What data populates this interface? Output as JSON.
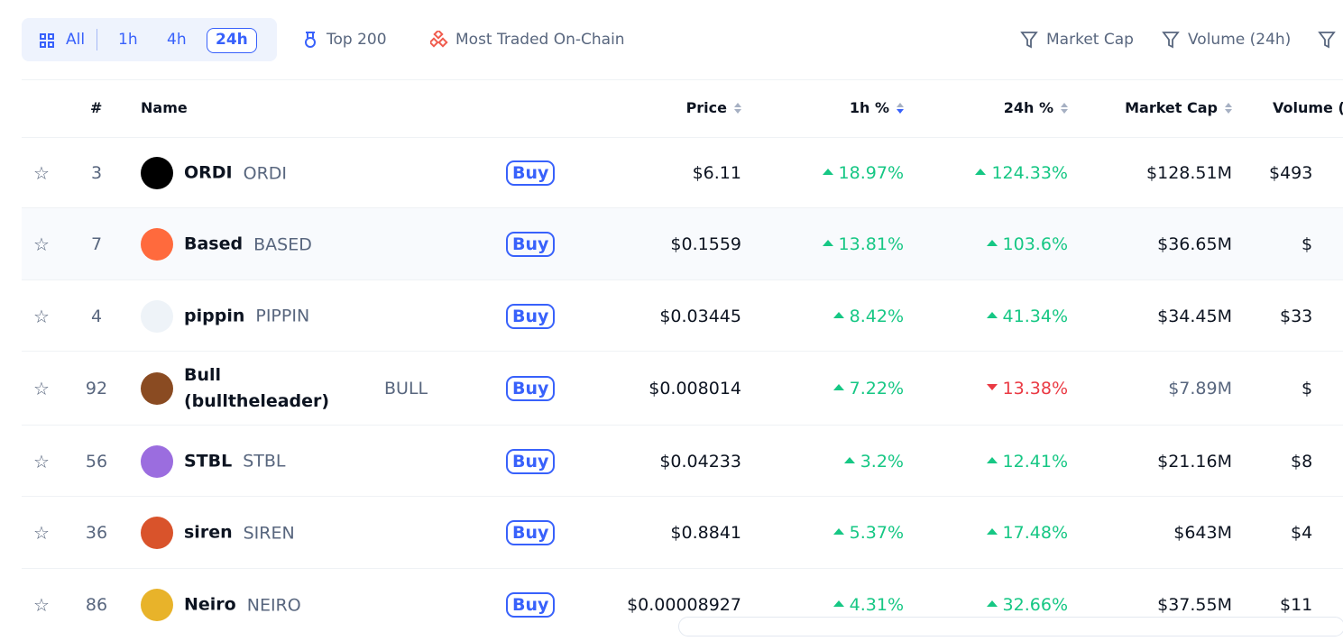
{
  "toolbar": {
    "tabs": [
      "All",
      "1h",
      "4h",
      "24h"
    ],
    "active_tab": 3,
    "filters": [
      "Top 200",
      "Most Traded On-Chain"
    ],
    "right_filters": [
      "Market Cap",
      "Volume (24h)"
    ]
  },
  "table": {
    "headers": [
      "#",
      "Name",
      "Price",
      "1h %",
      "24h %",
      "Market Cap",
      "Volume ("
    ],
    "buy_label": "Buy",
    "rows": [
      {
        "rank": 3,
        "name": "ORDI",
        "symbol": "ORDI",
        "price": "$6.11",
        "change_1h": "18.97%",
        "dir_1h": "up",
        "change_24h": "124.33%",
        "dir_24h": "up",
        "market_cap": "$128.51M",
        "volume": "$493",
        "icon": "#000000"
      },
      {
        "rank": 7,
        "name": "Based",
        "symbol": "BASED",
        "price": "$0.1559",
        "change_1h": "13.81%",
        "dir_1h": "up",
        "change_24h": "103.6%",
        "dir_24h": "up",
        "market_cap": "$36.65M",
        "volume": "$",
        "icon": "#ff6a3d"
      },
      {
        "rank": 4,
        "name": "pippin",
        "symbol": "PIPPIN",
        "price": "$0.03445",
        "change_1h": "8.42%",
        "dir_1h": "up",
        "change_24h": "41.34%",
        "dir_24h": "up",
        "market_cap": "$34.45M",
        "volume": "$33",
        "icon": "#eef3f8"
      },
      {
        "rank": 92,
        "name": "Bull (bulltheleader)",
        "symbol": "BULL",
        "price": "$0.008014",
        "change_1h": "7.22%",
        "dir_1h": "up",
        "change_24h": "13.38%",
        "dir_24h": "down",
        "market_cap": "$7.89M",
        "volume": "$",
        "icon": "#8a4b22"
      },
      {
        "rank": 56,
        "name": "STBL",
        "symbol": "STBL",
        "price": "$0.04233",
        "change_1h": "3.2%",
        "dir_1h": "up",
        "change_24h": "12.41%",
        "dir_24h": "up",
        "market_cap": "$21.16M",
        "volume": "$8",
        "icon": "#9b6ddf"
      },
      {
        "rank": 36,
        "name": "siren",
        "symbol": "SIREN",
        "price": "$0.8841",
        "change_1h": "5.37%",
        "dir_1h": "up",
        "change_24h": "17.48%",
        "dir_24h": "up",
        "market_cap": "$643M",
        "volume": "$4",
        "icon": "#d9532b"
      },
      {
        "rank": 86,
        "name": "Neiro",
        "symbol": "NEIRO",
        "price": "$0.00008927",
        "change_1h": "4.31%",
        "dir_1h": "up",
        "change_24h": "32.66%",
        "dir_24h": "up",
        "market_cap": "$37.55M",
        "volume": "$11",
        "icon": "#e8b32a"
      }
    ]
  }
}
